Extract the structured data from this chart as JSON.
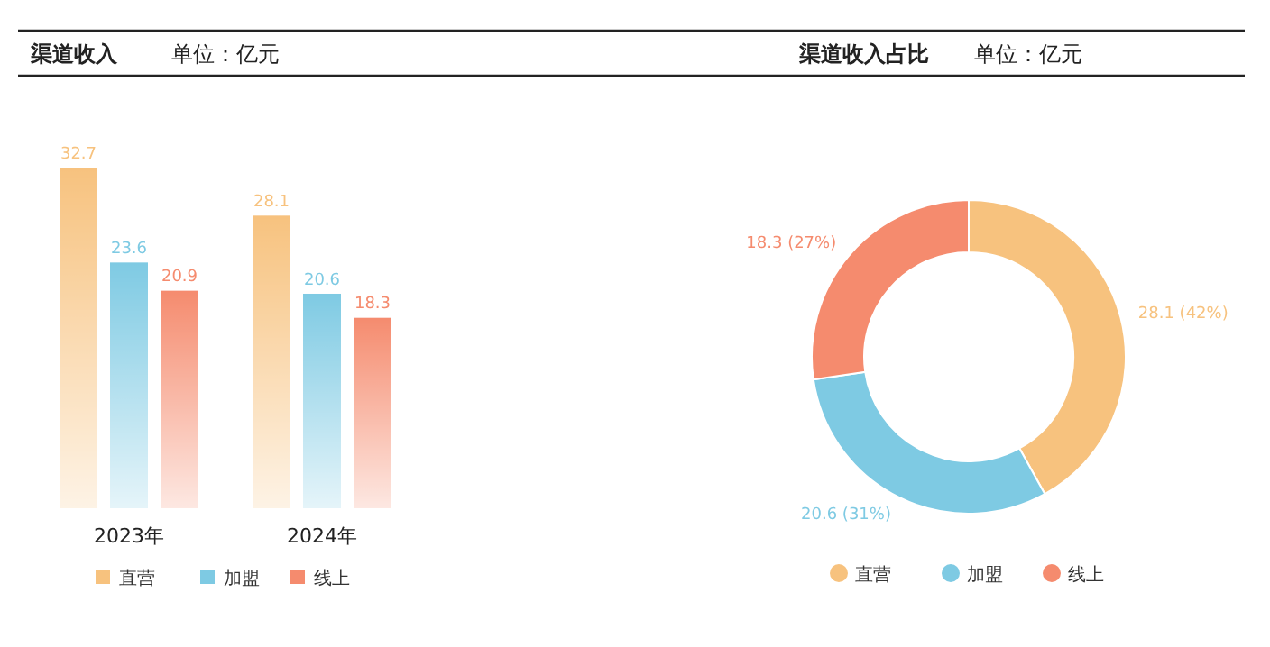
{
  "chart_data": [
    {
      "type": "bar",
      "title": "渠道收入",
      "subtitle": "单位：亿元",
      "categories": [
        "2023年",
        "2024年"
      ],
      "series": [
        {
          "name": "直营",
          "color": "#f7c27e",
          "values": [
            32.7,
            28.1
          ]
        },
        {
          "name": "加盟",
          "color": "#7ecae3",
          "values": [
            23.6,
            20.6
          ]
        },
        {
          "name": "线上",
          "color": "#f58b6e",
          "values": [
            20.9,
            18.3
          ]
        }
      ],
      "data_labels": true,
      "legend": "bottom"
    },
    {
      "type": "donut",
      "title": "渠道收入占比",
      "subtitle": "单位：亿元",
      "categories": [
        "直营",
        "加盟",
        "线上"
      ],
      "values": [
        28.1,
        20.6,
        18.3
      ],
      "colors": [
        "#f7c27e",
        "#7ecae3",
        "#f58b6e"
      ],
      "value_labels": [
        "28.1 (42%)",
        "20.6 (31%)",
        "18.3 (27%)"
      ],
      "legend": "bottom"
    }
  ]
}
